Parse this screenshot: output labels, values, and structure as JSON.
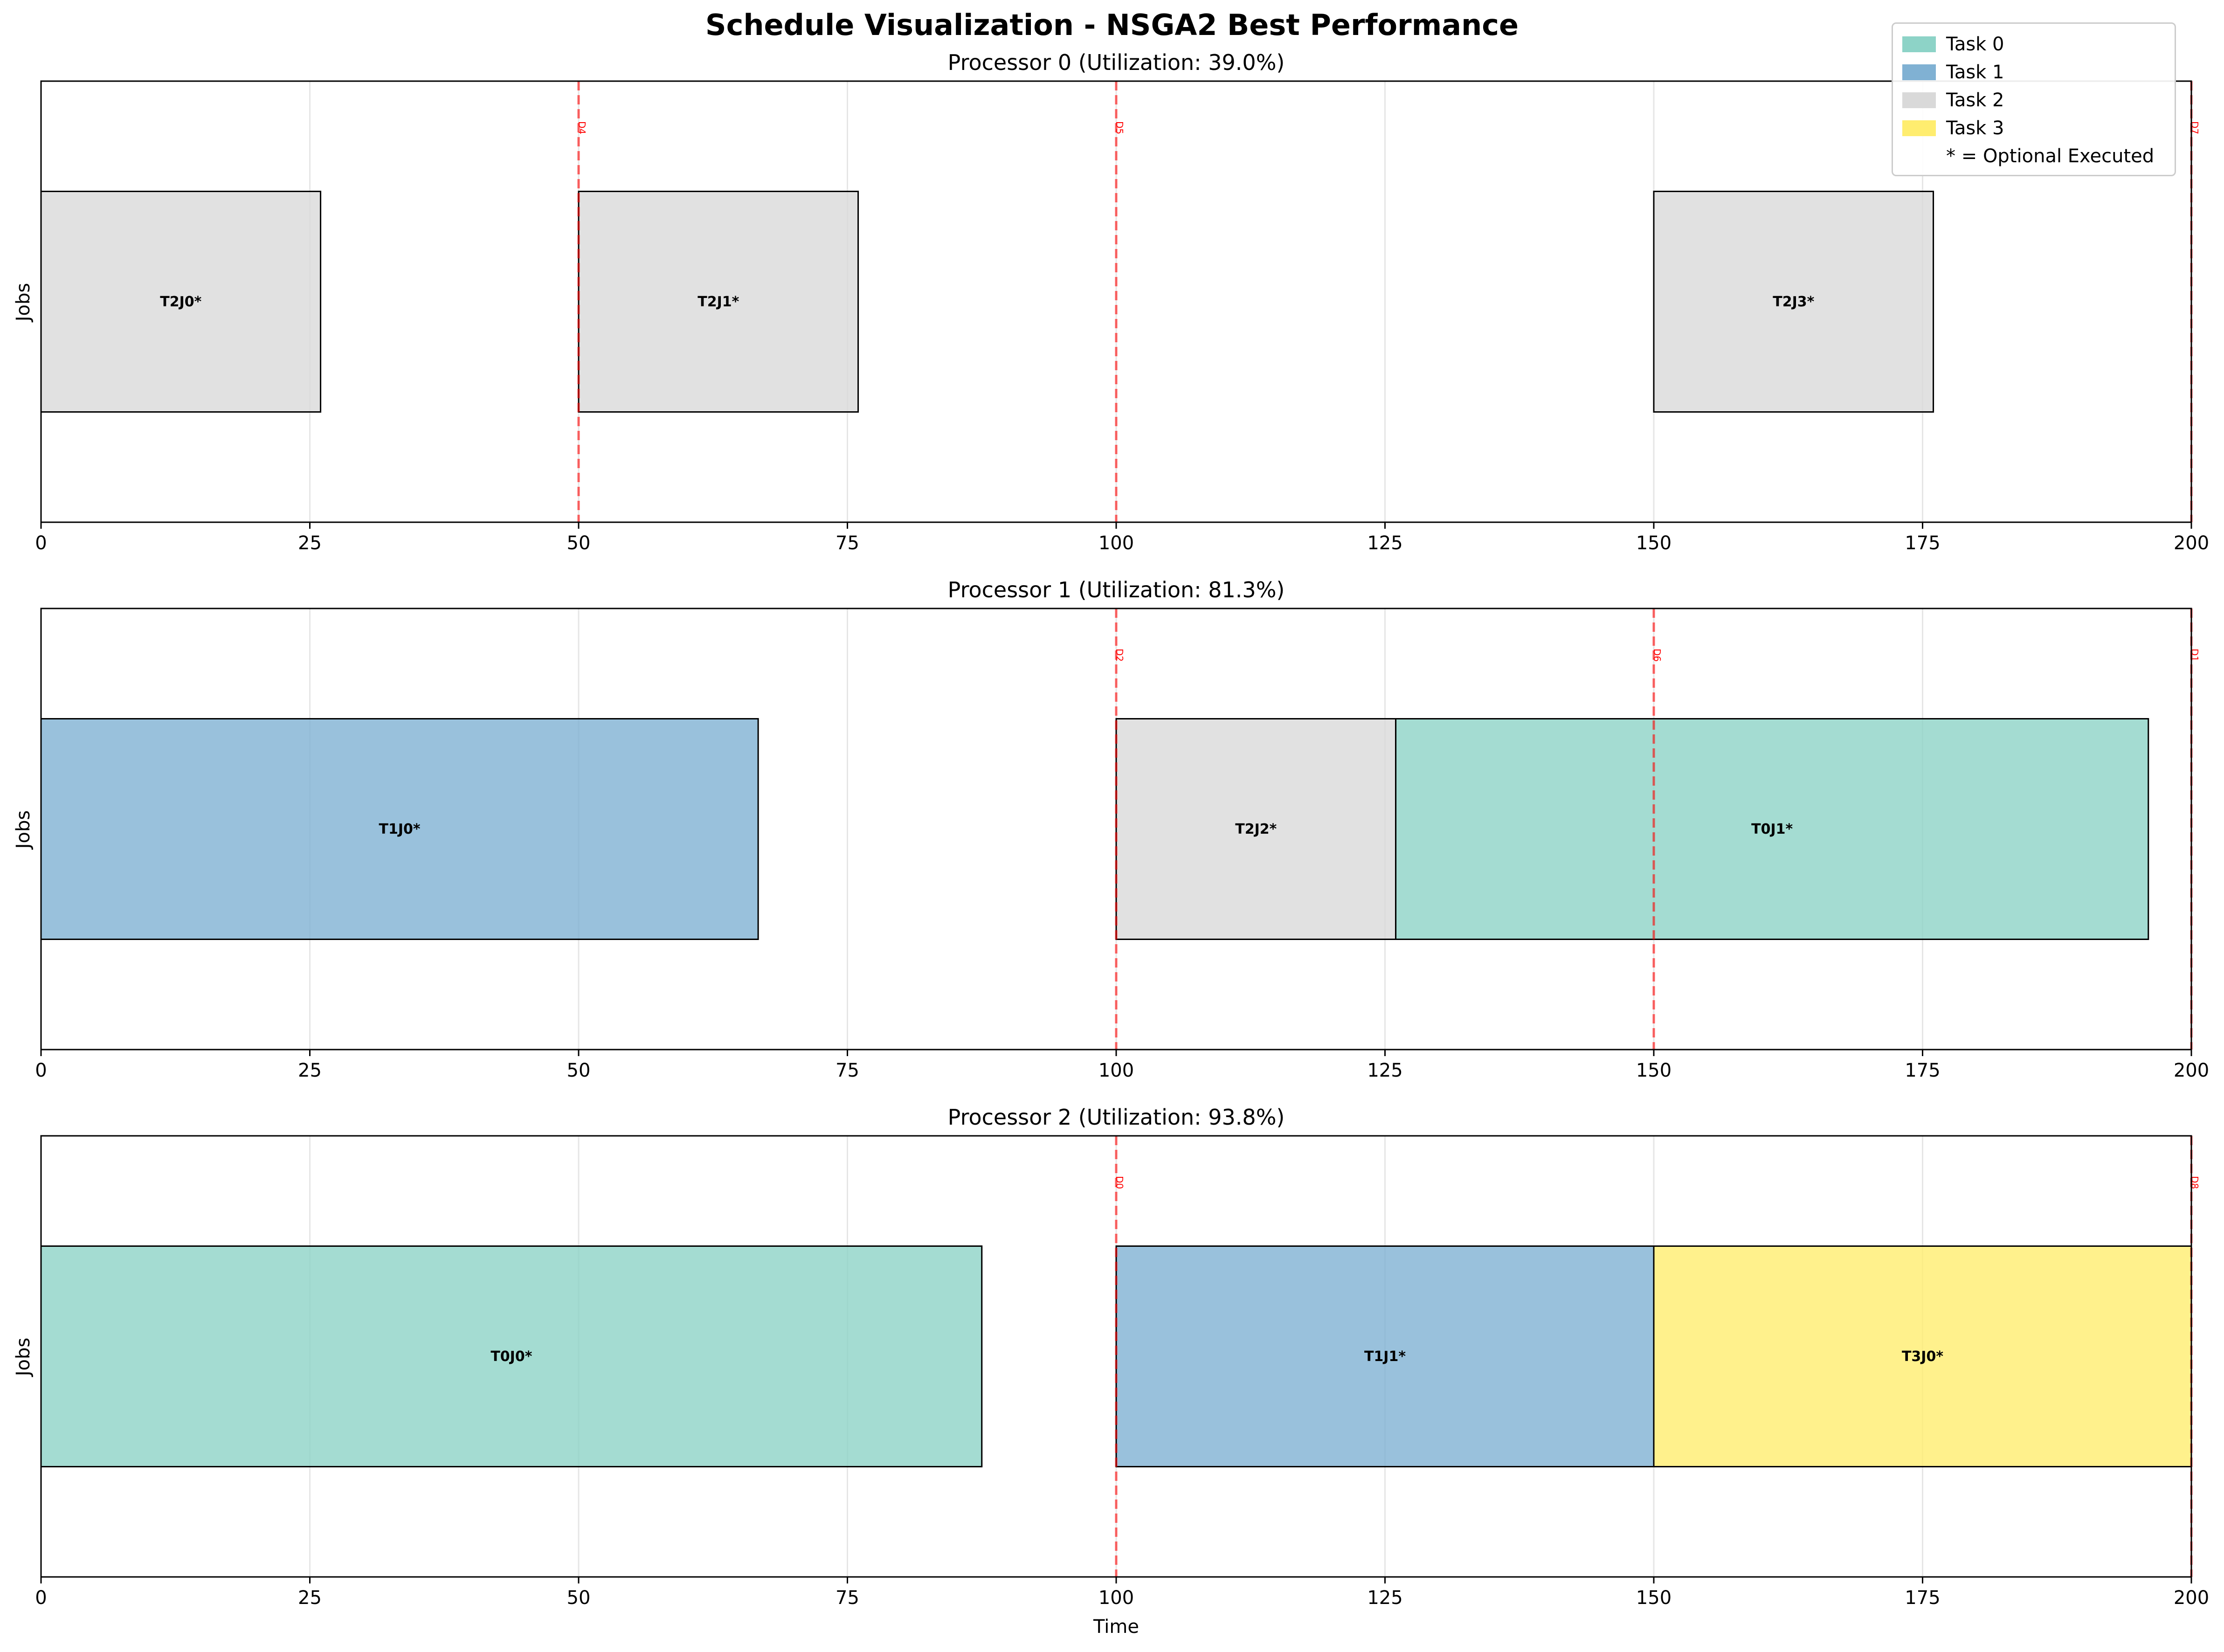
{
  "chart_data": {
    "type": "gantt",
    "title": "Schedule Visualization - NSGA2 Best Performance",
    "xlabel": "Time",
    "ylabel": "Jobs",
    "xlim": [
      0,
      200
    ],
    "x_ticks": [
      0,
      25,
      50,
      75,
      100,
      125,
      150,
      175,
      200
    ],
    "grid": true,
    "legend_position": "top-right",
    "legend": [
      {
        "label": "Task 0",
        "color": "#8dd3c7"
      },
      {
        "label": "Task 1",
        "color": "#80b1d3"
      },
      {
        "label": "Task 2",
        "color": "#d9d9d9"
      },
      {
        "label": "Task 3",
        "color": "#ffed6f"
      },
      {
        "label": "* = Optional Executed",
        "color": ""
      }
    ],
    "processors": [
      {
        "title": "Processor 0 (Utilization: 39.0%)",
        "bars": [
          {
            "label": "T2J0*",
            "task": 2,
            "start": 0,
            "end": 26
          },
          {
            "label": "T2J1*",
            "task": 2,
            "start": 50,
            "end": 76
          },
          {
            "label": "T2J3*",
            "task": 2,
            "start": 150,
            "end": 176
          }
        ],
        "deadlines": [
          {
            "x": 50,
            "label": "D4"
          },
          {
            "x": 100,
            "label": "D5"
          },
          {
            "x": 200,
            "label": "D7"
          }
        ]
      },
      {
        "title": "Processor 1 (Utilization: 81.3%)",
        "bars": [
          {
            "label": "T1J0*",
            "task": 1,
            "start": 0,
            "end": 66.7
          },
          {
            "label": "T2J2*",
            "task": 2,
            "start": 100,
            "end": 126
          },
          {
            "label": "T0J1*",
            "task": 0,
            "start": 126,
            "end": 196
          }
        ],
        "deadlines": [
          {
            "x": 100,
            "label": "D2"
          },
          {
            "x": 150,
            "label": "D6"
          },
          {
            "x": 200,
            "label": "D1"
          }
        ]
      },
      {
        "title": "Processor 2 (Utilization: 93.8%)",
        "bars": [
          {
            "label": "T0J0*",
            "task": 0,
            "start": 0,
            "end": 87.5
          },
          {
            "label": "T1J1*",
            "task": 1,
            "start": 100,
            "end": 150
          },
          {
            "label": "T3J0*",
            "task": 3,
            "start": 150,
            "end": 200
          }
        ],
        "deadlines": [
          {
            "x": 100,
            "label": "D0"
          },
          {
            "x": 200,
            "label": "D8"
          }
        ]
      }
    ]
  }
}
